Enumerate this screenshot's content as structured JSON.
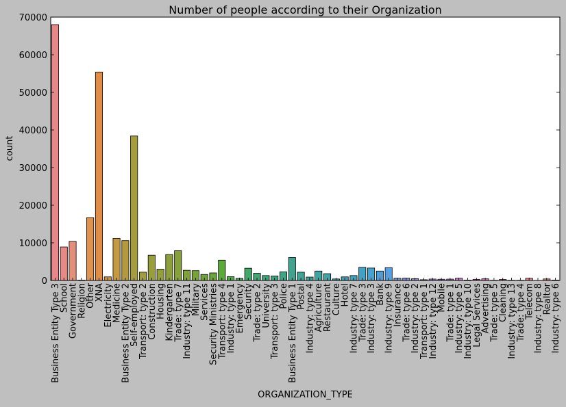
{
  "chart_data": {
    "type": "bar",
    "title": "Number of people according to their Organization",
    "xlabel": "ORGANIZATION_TYPE",
    "ylabel": "count",
    "ylim": [
      0,
      70000
    ],
    "yticks": [
      0,
      10000,
      20000,
      30000,
      40000,
      50000,
      60000,
      70000
    ],
    "grid": false,
    "categories": [
      "Business Entity Type 3",
      "School",
      "Government",
      "Religion",
      "Other",
      "XNA",
      "Electricity",
      "Medicine",
      "Business Entity Type 2",
      "Self-employed",
      "Transport: type 2",
      "Construction",
      "Housing",
      "Kindergarten",
      "Trade: type 7",
      "Industry: type 11",
      "Military",
      "Services",
      "Security Ministries",
      "Transport: type 4",
      "Industry: type 1",
      "Emergency",
      "Security",
      "Trade: type 2",
      "University",
      "Transport: type 3",
      "Police",
      "Business Entity Type 1",
      "Postal",
      "Industry: type 4",
      "Agriculture",
      "Restaurant",
      "Culture",
      "Hotel",
      "Industry: type 7",
      "Trade: type 3",
      "Industry: type 3",
      "Bank",
      "Industry: type 9",
      "Insurance",
      "Trade: type 6",
      "Industry: type 2",
      "Transport: type 1",
      "Industry: type 12",
      "Mobile",
      "Trade: type 1",
      "Industry: type 5",
      "Industry: type 10",
      "Legal Services",
      "Advertising",
      "Trade: type 5",
      "Cleaning",
      "Industry: type 13",
      "Trade: type 4",
      "Telecom",
      "Industry: type 8",
      "Realtor",
      "Industry: type 6"
    ],
    "values": [
      68000,
      8900,
      10400,
      100,
      16700,
      55400,
      950,
      11200,
      10600,
      38400,
      2200,
      6700,
      3000,
      6900,
      7900,
      2700,
      2600,
      1600,
      2000,
      5400,
      1000,
      560,
      3250,
      1900,
      1300,
      1200,
      2300,
      6100,
      2200,
      900,
      2500,
      1800,
      400,
      950,
      1300,
      3500,
      3300,
      2500,
      3400,
      600,
      630,
      460,
      200,
      370,
      320,
      350,
      600,
      110,
      300,
      430,
      70,
      260,
      70,
      65,
      580,
      25,
      400,
      110
    ],
    "bar_colors": [
      "#e8878a",
      "#e58a86",
      "#e48f7a",
      "#df8f6d",
      "#e0924f",
      "#e08e45",
      "#d09441",
      "#c4993f",
      "#b39a3e",
      "#a59d3d",
      "#a09e3c",
      "#999e3c",
      "#939f3b",
      "#8c9f3b",
      "#86a03b",
      "#7fa13a",
      "#78a23a",
      "#70a43a",
      "#69a53a",
      "#5ba83b",
      "#4fa94a",
      "#45a75b",
      "#43a66a",
      "#42a573",
      "#41a47a",
      "#41a380",
      "#41a386",
      "#40a38e",
      "#40a393",
      "#40a399",
      "#40a39f",
      "#40a3a6",
      "#41a2ac",
      "#42a2b3",
      "#43a2bb",
      "#45a1c4",
      "#48a0cc",
      "#4e9dd6",
      "#55a0e0",
      "#7493d6",
      "#8190d6",
      "#8d8cd8",
      "#9a88d8",
      "#a584d6",
      "#b080d3",
      "#bb7dd0",
      "#c57acd",
      "#cf79c6",
      "#d678bd",
      "#db78b4",
      "#df79aa",
      "#e17ba2",
      "#e27d99",
      "#e37f91",
      "#e4818a",
      "#e58484",
      "#e68680",
      "#e7887c"
    ]
  }
}
